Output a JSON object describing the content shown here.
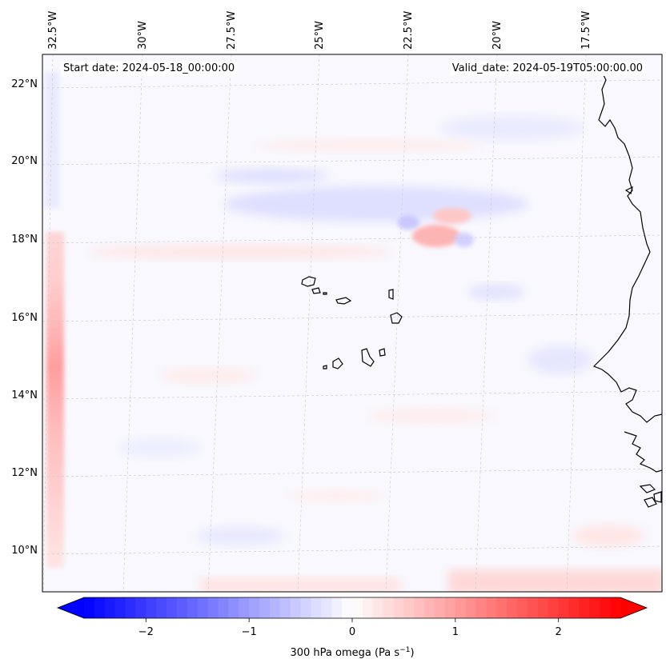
{
  "map": {
    "header": {
      "start_date": "Start date: 2024-05-18_00:00:00",
      "valid_date": "Valid_date: 2024-05-19T05:00:00.00"
    },
    "lon_labels": [
      "32.5°W",
      "30°W",
      "27.5°W",
      "25°W",
      "22.5°W",
      "20°W",
      "17.5°W"
    ],
    "lat_labels": [
      "22°N",
      "20°N",
      "18°N",
      "16°N",
      "14°N",
      "12°N",
      "10°N"
    ],
    "extent": {
      "lon_min": -32.6,
      "lon_max": -15.2,
      "lat_min": 9.0,
      "lat_max": 22.7
    },
    "field": "300 hPa omega",
    "gridlines": true
  },
  "colorbar": {
    "label_prefix": "300 hPa omega (Pa s",
    "label_exp": "−1",
    "label_suffix": ")",
    "ticks": [
      "−2",
      "−1",
      "0",
      "1",
      "2"
    ],
    "tick_values": [
      -2,
      -1,
      0,
      1,
      2
    ],
    "range": [
      -2.6,
      2.6
    ],
    "extend": "both",
    "cmap": "bwr",
    "colors": {
      "negative": "#0000ff",
      "zero": "#ffffff",
      "positive": "#ff0000"
    }
  }
}
